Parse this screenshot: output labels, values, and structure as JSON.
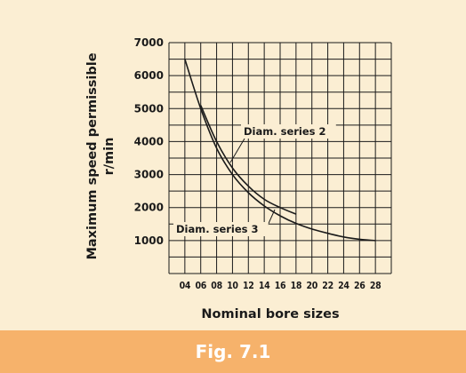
{
  "caption": "Fig. 7.1",
  "colors": {
    "panel_background": "#fbeed3",
    "caption_bar": "#f6b26b",
    "caption_text": "#ffffff",
    "grid_lines": "#1a1a1a",
    "curves": "#1a1a1a"
  },
  "chart_data": {
    "type": "line",
    "xlabel": "Nominal bore sizes",
    "ylabel_line1": "Maximum speed permissible",
    "ylabel_line2": "r/min",
    "grid": true,
    "ylim": [
      0,
      7000
    ],
    "y_ticks": [
      1000,
      2000,
      3000,
      4000,
      5000,
      6000,
      7000
    ],
    "x_tick_labels": [
      "04",
      "06",
      "08",
      "10",
      "12",
      "14",
      "16",
      "18",
      "20",
      "22",
      "24",
      "26",
      "28"
    ],
    "x_range": [
      "02",
      "30"
    ],
    "series": [
      {
        "name": "Diam. series 2",
        "x": [
          "04",
          "06",
          "08",
          "10",
          "12",
          "14",
          "16",
          "18",
          "20",
          "22",
          "24",
          "26",
          "28"
        ],
        "y": [
          6500,
          5000,
          3800,
          3000,
          2450,
          2050,
          1750,
          1520,
          1350,
          1220,
          1110,
          1040,
          1000
        ]
      },
      {
        "name": "Diam. series 3",
        "x": [
          "06",
          "08",
          "10",
          "12",
          "14",
          "16",
          "18"
        ],
        "y": [
          5100,
          4000,
          3200,
          2650,
          2250,
          2000,
          1800
        ]
      }
    ]
  }
}
